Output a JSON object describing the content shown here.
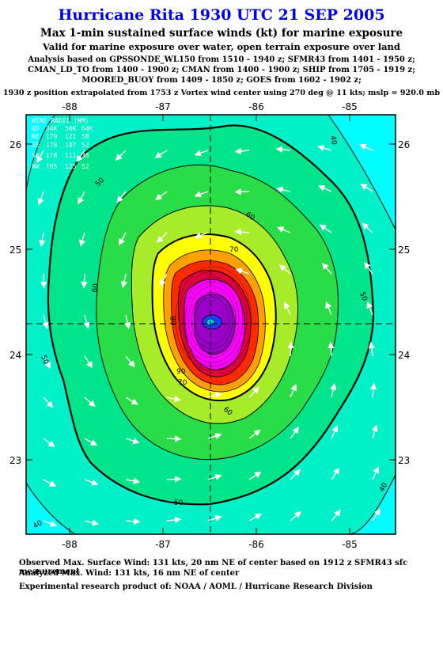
{
  "header": {
    "title": "Hurricane Rita 1930 UTC 21 SEP 2005",
    "subtitle": "Max 1-min sustained surface winds (kt) for marine exposure",
    "validity": "Valid for marine exposure over water, open terrain exposure over land",
    "analysis_lines": [
      "Analysis based on  GPSSONDE_WL150 from 1510 - 1940 z;  SFMR43 from 1401 - 1950 z;",
      "CMAN_LD_TO from 1400 - 1900 z;  CMAN from 1400 - 1900 z;  SHIP from 1705 - 1919 z;",
      "MOORED_BUOY from 1409 - 1850 z;  GOES from 1602 - 1902 z;"
    ],
    "position_note": "1930 z position extrapolated from 1753 z Vortex wind center using 270 deg @ 11 kts; mslp = 920.0 mb"
  },
  "map": {
    "x_ticks": [
      "-88",
      "-87",
      "-86",
      "-85"
    ],
    "y_ticks": [
      "26",
      "25",
      "24",
      "23"
    ],
    "contour_labels": [
      "40",
      "50",
      "60",
      "70",
      "80",
      "90",
      "100",
      "110",
      "120",
      "130"
    ],
    "center": {
      "lon": -86.5,
      "lat": 24.3
    }
  },
  "radii_table": {
    "header": "WIND RADII (NM)",
    "columns": [
      "QD",
      "34K",
      "50K",
      "64K"
    ],
    "rows": [
      [
        "NE",
        "179",
        "121",
        "58"
      ],
      [
        "SE",
        "178",
        "107",
        "52"
      ],
      [
        "SW",
        "178",
        "111",
        "38"
      ],
      [
        "NW",
        "165",
        "125",
        "52"
      ]
    ]
  },
  "footer": {
    "observed": "Observed Max. Surface Wind: 131 kts, 20 nm NE of center based on 1912 z SFMR43 sfc measurement",
    "analyzed": "Analyzed Max. Wind: 131 kts, 16 nm NE of center",
    "credit": "Experimental research product of:  NOAA / AOML / Hurricane Research Division"
  },
  "colors": {
    "cyan": "#00ffff",
    "aqua": "#00f0c8",
    "green1": "#00e58c",
    "green2": "#28dd48",
    "yellowgreen": "#a6ec28",
    "yellow": "#ffff00",
    "orange": "#ffa000",
    "red": "#ff2a00",
    "crimson": "#e0003c",
    "magenta": "#ff00ff",
    "purple": "#9a00c8",
    "blue": "#1a40ff"
  }
}
